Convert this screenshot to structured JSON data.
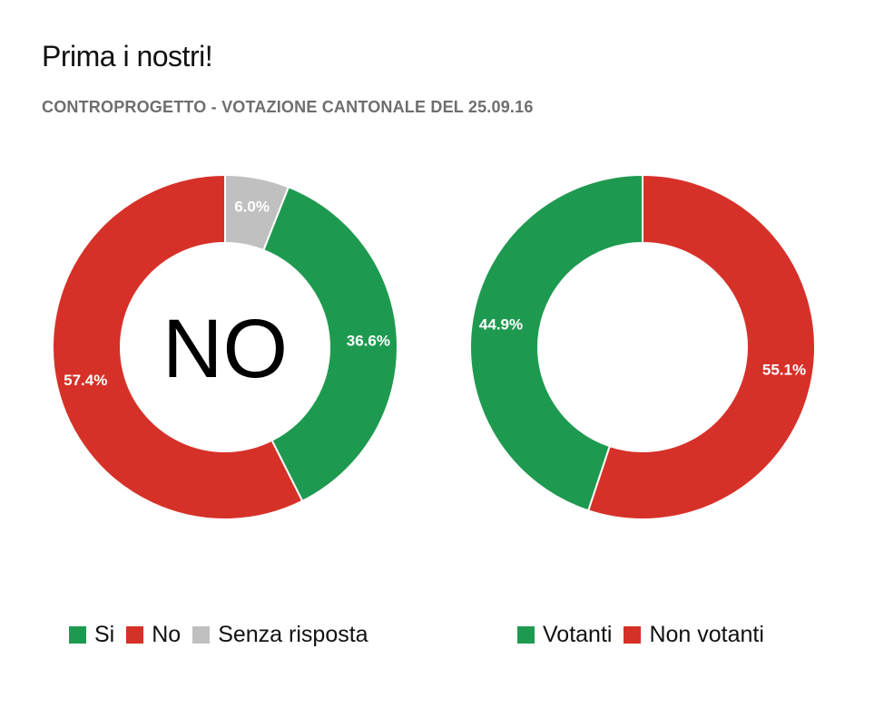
{
  "title": "Prima i nostri!",
  "subtitle": "CONTROPROGETTO - VOTAZIONE CANTONALE DEL 25.09.16",
  "colors": {
    "green": "#1e9a50",
    "red": "#d63128",
    "gray": "#c0c0c0"
  },
  "chart_data": [
    {
      "type": "pie",
      "donut": true,
      "center_label": "NO",
      "slices": [
        {
          "name": "Si",
          "value": 36.6,
          "label": "36.6%",
          "color": "#1e9a50"
        },
        {
          "name": "No",
          "value": 57.4,
          "label": "57.4%",
          "color": "#d63128"
        },
        {
          "name": "Senza risposta",
          "value": 6.0,
          "label": "6.0%",
          "color": "#c0c0c0"
        }
      ],
      "legend": [
        "Si",
        "No",
        "Senza risposta"
      ],
      "legend_placement": "bottom"
    },
    {
      "type": "pie",
      "donut": true,
      "slices": [
        {
          "name": "Votanti",
          "value": 44.9,
          "label": "44.9%",
          "color": "#1e9a50"
        },
        {
          "name": "Non votanti",
          "value": 55.1,
          "label": "55.1%",
          "color": "#d63128"
        }
      ],
      "legend": [
        "Votanti",
        "Non votanti"
      ],
      "legend_placement": "bottom"
    }
  ]
}
